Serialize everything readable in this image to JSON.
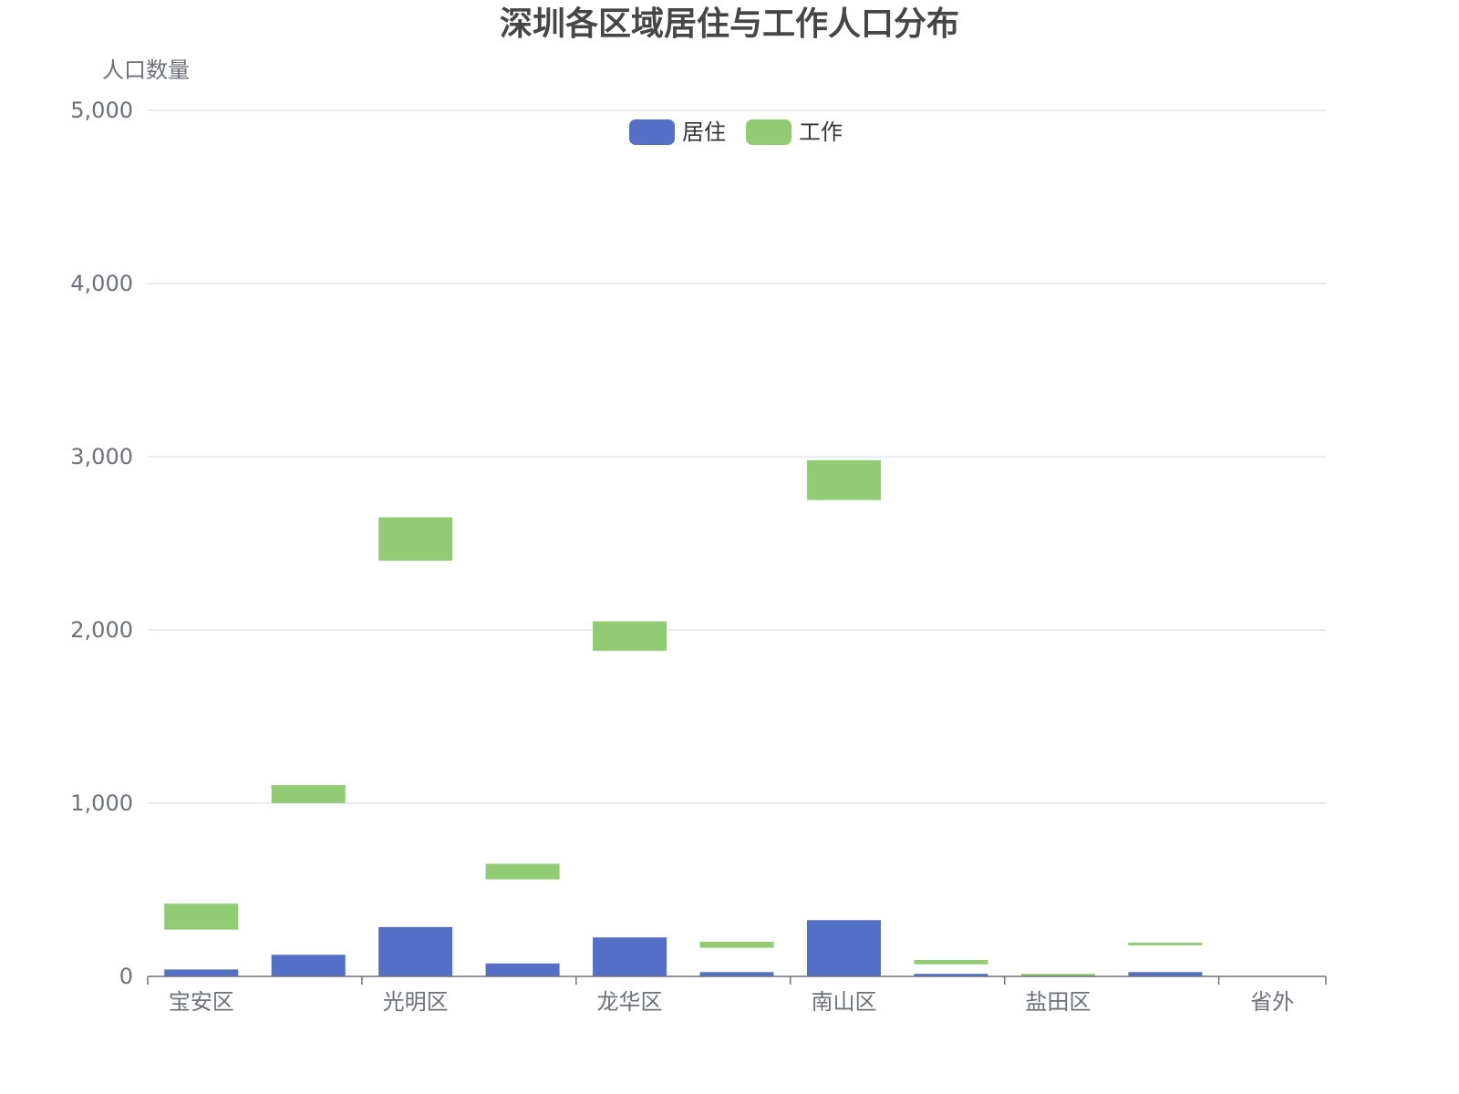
{
  "chart_data": {
    "type": "bar",
    "title": "深圳各区域居住与工作人口分布",
    "ylabel": "人口数量",
    "xlabel": "",
    "ylim": [
      0,
      5000
    ],
    "yticks": [
      0,
      1000,
      2000,
      3000,
      4000,
      5000
    ],
    "ytick_labels": [
      "0",
      "1,000",
      "2,000",
      "3,000",
      "4,000",
      "5,000"
    ],
    "categories": [
      "宝安区",
      "",
      "光明区",
      "",
      "龙华区",
      "",
      "南山区",
      "",
      "盐田区",
      "",
      "省外"
    ],
    "x_tick_labels_shown": [
      "宝安区",
      "光明区",
      "龙华区",
      "南山区",
      "盐田区",
      "省外"
    ],
    "grid": true,
    "legend_position": "top-center",
    "series": [
      {
        "name": "居住",
        "color": "#5470c6",
        "type": "bar",
        "values": [
          40,
          125,
          285,
          75,
          225,
          25,
          325,
          15,
          5,
          25,
          0
        ]
      },
      {
        "name": "工作",
        "color": "#91cc75",
        "type": "floating-bar",
        "ranges": [
          [
            270,
            420
          ],
          [
            1000,
            1105
          ],
          [
            2400,
            2650
          ],
          [
            560,
            650
          ],
          [
            1880,
            2050
          ],
          [
            165,
            200
          ],
          [
            2750,
            2980
          ],
          [
            70,
            95
          ],
          [
            5,
            15
          ],
          [
            180,
            195
          ],
          null
        ]
      }
    ]
  }
}
